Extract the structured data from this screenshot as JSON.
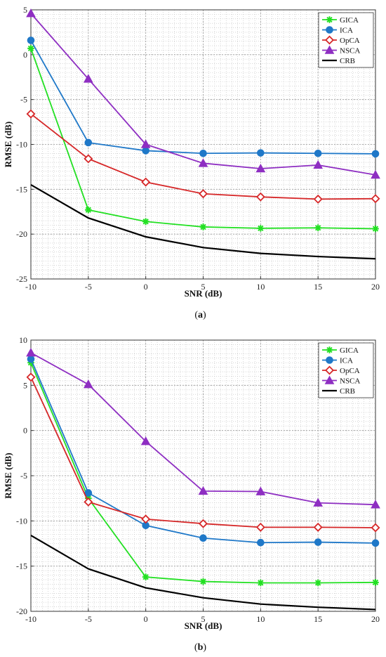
{
  "chart_data": [
    {
      "type": "line",
      "caption_open": "(",
      "caption_letter": "a",
      "caption_close": ")",
      "xlabel": "SNR (dB)",
      "ylabel": "RMSE (dB)",
      "x": [
        -10,
        -5,
        0,
        5,
        10,
        15,
        20
      ],
      "x_tick_labels": [
        "-10",
        "-5",
        "0",
        "5",
        "10",
        "15",
        "20"
      ],
      "ylim": [
        -25,
        5
      ],
      "y_ticks": [
        5,
        0,
        -5,
        -10,
        -15,
        -20,
        -25
      ],
      "y_tick_labels": [
        "5",
        "0",
        "-5",
        "-10",
        "-15",
        "-20",
        "-25"
      ],
      "grid": true,
      "minor_grid": true,
      "legend_position": "top-right",
      "series": [
        {
          "name": "GICA",
          "color": "#22e022",
          "marker": "asterisk",
          "values": [
            0.7,
            -17.3,
            -18.6,
            -19.2,
            -19.35,
            -19.3,
            -19.4
          ]
        },
        {
          "name": "ICA",
          "color": "#1f78c8",
          "marker": "circle",
          "values": [
            1.6,
            -9.8,
            -10.7,
            -11.0,
            -10.95,
            -11.0,
            -11.05
          ]
        },
        {
          "name": "OpCA",
          "color": "#d62728",
          "marker": "diamond",
          "values": [
            -6.6,
            -11.6,
            -14.2,
            -15.5,
            -15.85,
            -16.1,
            -16.05
          ]
        },
        {
          "name": "NSCA",
          "color": "#8e2ec2",
          "marker": "triangle",
          "values": [
            4.6,
            -2.7,
            -10.0,
            -12.1,
            -12.7,
            -12.3,
            -13.4
          ]
        },
        {
          "name": "CRB",
          "color": "#000000",
          "marker": "none",
          "values": [
            -14.5,
            -18.2,
            -20.3,
            -21.5,
            -22.15,
            -22.5,
            -22.75
          ]
        }
      ]
    },
    {
      "type": "line",
      "caption_open": "(",
      "caption_letter": "b",
      "caption_close": ")",
      "xlabel": "SNR (dB)",
      "ylabel": "RMSE (dB)",
      "x": [
        -10,
        -5,
        0,
        5,
        10,
        15,
        20
      ],
      "x_tick_labels": [
        "-10",
        "-5",
        "0",
        "5",
        "10",
        "15",
        "20"
      ],
      "ylim": [
        -20,
        10
      ],
      "y_ticks": [
        10,
        5,
        0,
        -5,
        -10,
        -15,
        -20
      ],
      "y_tick_labels": [
        "10",
        "5",
        "0",
        "-5",
        "-10",
        "-15",
        "-20"
      ],
      "grid": true,
      "minor_grid": true,
      "legend_position": "top-right",
      "series": [
        {
          "name": "GICA",
          "color": "#22e022",
          "marker": "asterisk",
          "values": [
            7.5,
            -7.5,
            -16.2,
            -16.7,
            -16.85,
            -16.85,
            -16.8
          ]
        },
        {
          "name": "ICA",
          "color": "#1f78c8",
          "marker": "circle",
          "values": [
            7.9,
            -6.9,
            -10.5,
            -11.9,
            -12.4,
            -12.35,
            -12.45
          ]
        },
        {
          "name": "OpCA",
          "color": "#d62728",
          "marker": "diamond",
          "values": [
            5.9,
            -7.9,
            -9.8,
            -10.3,
            -10.7,
            -10.7,
            -10.75
          ]
        },
        {
          "name": "NSCA",
          "color": "#8e2ec2",
          "marker": "triangle",
          "values": [
            8.6,
            5.1,
            -1.2,
            -6.7,
            -6.75,
            -8.0,
            -8.2
          ]
        },
        {
          "name": "CRB",
          "color": "#000000",
          "marker": "none",
          "values": [
            -11.6,
            -15.3,
            -17.4,
            -18.5,
            -19.2,
            -19.55,
            -19.8
          ]
        }
      ]
    }
  ]
}
